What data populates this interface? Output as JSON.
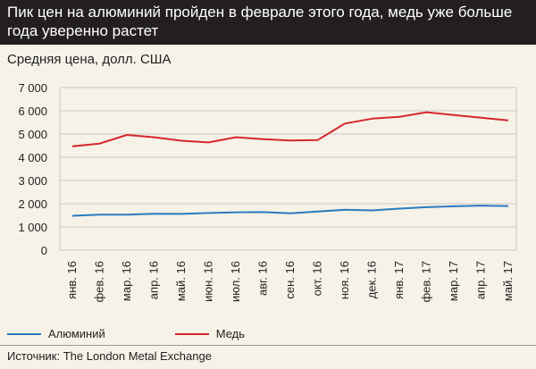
{
  "header": {
    "title": "Пик цен на алюминий пройден в феврале этого года, медь уже больше года уверенно растет"
  },
  "subtitle": "Средняя цена, долл. США",
  "source": "Источник: The London Metal Exchange",
  "colors": {
    "aluminum": "#2b7bbf",
    "copper": "#d6262b",
    "grid": "#c8c8c8",
    "header_bg": "#231f20",
    "background": "#f6f2e8"
  },
  "chart_data": {
    "type": "line",
    "title": "Пик цен на алюминий пройден в феврале этого года, медь уже больше года уверенно растет",
    "ylabel": "Средняя цена, долл. США",
    "xlabel": "",
    "x": [
      "янв. 16",
      "фев. 16",
      "мар. 16",
      "апр. 16",
      "май. 16",
      "июн. 16",
      "июл. 16",
      "авг. 16",
      "сен. 16",
      "окт. 16",
      "ноя. 16",
      "дек. 16",
      "янв. 17",
      "фев. 17",
      "мар. 17",
      "апр. 17",
      "май. 17"
    ],
    "y_ticks": [
      0,
      1000,
      2000,
      3000,
      4000,
      5000,
      6000,
      7000
    ],
    "y_tick_labels": [
      "0",
      "1 000",
      "2 000",
      "3 000",
      "4 000",
      "5 000",
      "6 000",
      "7 000"
    ],
    "ylim": [
      0,
      7000
    ],
    "grid": true,
    "legend_position": "bottom",
    "series": [
      {
        "name": "Алюминий",
        "color": "#2b7bbf",
        "values": [
          1480,
          1530,
          1530,
          1570,
          1560,
          1600,
          1630,
          1640,
          1590,
          1660,
          1740,
          1710,
          1790,
          1850,
          1890,
          1920,
          1900
        ]
      },
      {
        "name": "Медь",
        "color": "#d6262b",
        "values": [
          4470,
          4590,
          4960,
          4860,
          4710,
          4640,
          4860,
          4780,
          4720,
          4740,
          5450,
          5660,
          5740,
          5940,
          5820,
          5700,
          5590
        ]
      }
    ]
  }
}
